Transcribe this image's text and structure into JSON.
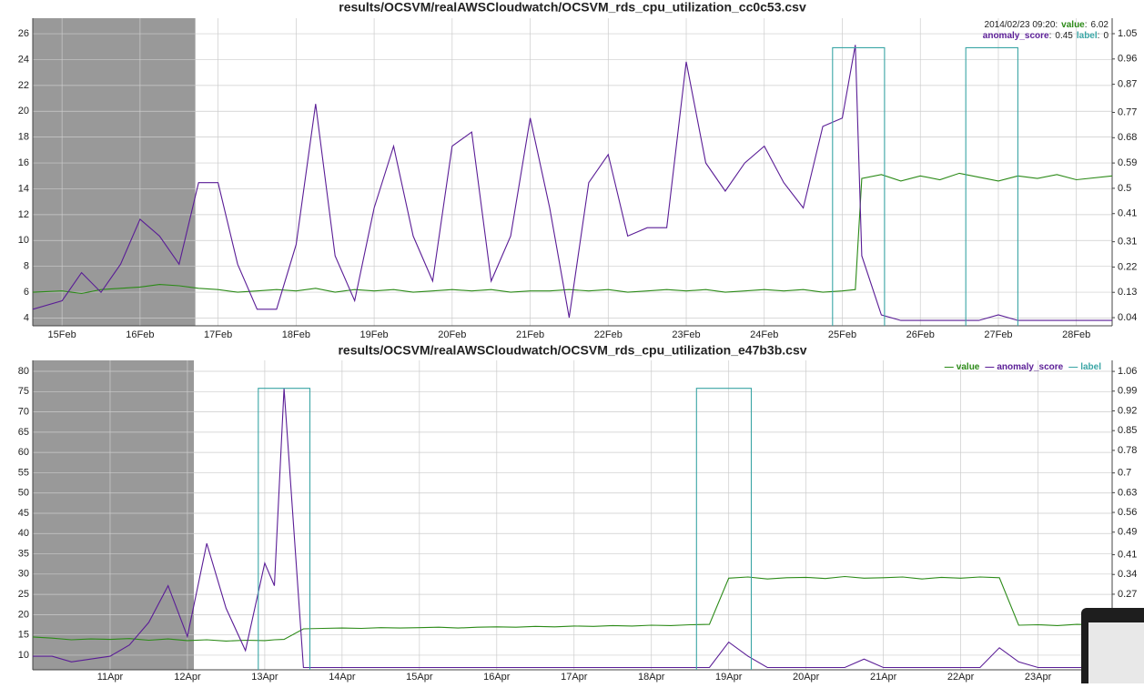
{
  "chart_data": [
    {
      "type": "line",
      "title": "results/OCSVM/realAWSCloudwatch/OCSVM_rds_cpu_utilization_cc0c53.csv",
      "x": [
        "02/14 15:00",
        "02/15 00:00",
        "02/15 06:00",
        "02/15 12:00",
        "02/15 18:00",
        "02/16 00:00",
        "02/16 06:00",
        "02/16 12:00",
        "02/16 18:00",
        "02/17 00:00",
        "02/17 06:00",
        "02/17 12:00",
        "02/17 18:00",
        "02/18 00:00",
        "02/18 06:00",
        "02/18 12:00",
        "02/18 18:00",
        "02/19 00:00",
        "02/19 06:00",
        "02/19 12:00",
        "02/19 18:00",
        "02/20 00:00",
        "02/20 06:00",
        "02/20 12:00",
        "02/20 18:00",
        "02/21 00:00",
        "02/21 06:00",
        "02/21 12:00",
        "02/21 18:00",
        "02/22 00:00",
        "02/22 06:00",
        "02/22 12:00",
        "02/22 18:00",
        "02/23 00:00",
        "02/23 06:00",
        "02/23 12:00",
        "02/23 18:00",
        "02/24 00:00",
        "02/24 06:00",
        "02/24 12:00",
        "02/24 18:00",
        "02/25 00:00",
        "02/25 04:00",
        "02/25 06:00",
        "02/25 12:00",
        "02/25 18:00",
        "02/26 00:00",
        "02/26 06:00",
        "02/26 12:00",
        "02/26 18:00",
        "02/27 00:00",
        "02/27 06:00",
        "02/27 12:00",
        "02/27 18:00",
        "02/28 00:00",
        "02/28 11:00"
      ],
      "series": [
        {
          "name": "value",
          "color": "#2b8a17",
          "values": [
            6.0,
            6.1,
            5.9,
            6.2,
            6.3,
            6.4,
            6.6,
            6.5,
            6.3,
            6.2,
            6.0,
            6.1,
            6.2,
            6.1,
            6.3,
            6.0,
            6.2,
            6.1,
            6.2,
            6.0,
            6.1,
            6.2,
            6.1,
            6.2,
            6.0,
            6.1,
            6.1,
            6.2,
            6.1,
            6.2,
            6.0,
            6.1,
            6.2,
            6.1,
            6.2,
            6.0,
            6.1,
            6.2,
            6.1,
            6.2,
            6.0,
            6.1,
            6.2,
            14.8,
            15.1,
            14.6,
            15.0,
            14.7,
            15.2,
            14.9,
            14.6,
            15.0,
            14.8,
            15.1,
            14.7,
            15.0
          ]
        },
        {
          "name": "anomaly_score",
          "color": "#5a1d96",
          "axis": "y2",
          "values": [
            0.07,
            0.1,
            0.2,
            0.13,
            0.23,
            0.39,
            0.33,
            0.23,
            0.52,
            0.52,
            0.23,
            0.07,
            0.07,
            0.3,
            0.8,
            0.26,
            0.1,
            0.43,
            0.65,
            0.33,
            0.17,
            0.65,
            0.7,
            0.17,
            0.33,
            0.75,
            0.43,
            0.04,
            0.52,
            0.62,
            0.33,
            0.36,
            0.36,
            0.95,
            0.59,
            0.49,
            0.59,
            0.65,
            0.52,
            0.43,
            0.72,
            0.75,
            1.01,
            0.26,
            0.05,
            0.03,
            0.03,
            0.03,
            0.03,
            0.03,
            0.05,
            0.03,
            0.03,
            0.03,
            0.03,
            0.03
          ]
        },
        {
          "name": "label",
          "color": "#3aa5a5",
          "axis": "y2",
          "x": [
            "02/14 15:00",
            "02/24 21:00",
            "02/24 21:00",
            "02/25 13:00",
            "02/25 13:00",
            "02/26 14:00",
            "02/26 14:00",
            "02/27 06:00",
            "02/27 06:00",
            "02/28 11:00"
          ],
          "values": [
            0,
            0,
            1,
            1,
            0,
            0,
            1,
            1,
            0,
            0
          ]
        }
      ],
      "xlim": [
        "02/14 15:00",
        "02/28 11:00"
      ],
      "xticks": [
        {
          "value": "02/15 00:00",
          "label": "15Feb"
        },
        {
          "value": "02/16 00:00",
          "label": "16Feb"
        },
        {
          "value": "02/17 00:00",
          "label": "17Feb"
        },
        {
          "value": "02/18 00:00",
          "label": "18Feb"
        },
        {
          "value": "02/19 00:00",
          "label": "19Feb"
        },
        {
          "value": "02/20 00:00",
          "label": "20Feb"
        },
        {
          "value": "02/21 00:00",
          "label": "21Feb"
        },
        {
          "value": "02/22 00:00",
          "label": "22Feb"
        },
        {
          "value": "02/23 00:00",
          "label": "23Feb"
        },
        {
          "value": "02/24 00:00",
          "label": "24Feb"
        },
        {
          "value": "02/25 00:00",
          "label": "25Feb"
        },
        {
          "value": "02/26 00:00",
          "label": "26Feb"
        },
        {
          "value": "02/27 00:00",
          "label": "27Feb"
        },
        {
          "value": "02/28 00:00",
          "label": "28Feb"
        }
      ],
      "ylim": [
        3.4,
        27.2
      ],
      "yticks": [
        4,
        6,
        8,
        10,
        12,
        14,
        16,
        18,
        20,
        22,
        24,
        26
      ],
      "y2lim": [
        0.011,
        1.105
      ],
      "y2ticks": [
        0.04,
        0.13,
        0.22,
        0.31,
        0.41,
        0.5,
        0.59,
        0.68,
        0.77,
        0.87,
        0.96,
        1.05
      ],
      "grid": true,
      "shaded_region": [
        "02/14 15:00",
        "02/16 17:00"
      ],
      "hover": {
        "time": "2014/02/23 09:20",
        "values": [
          6.02,
          0.45,
          0
        ]
      }
    },
    {
      "type": "line",
      "title": "results/OCSVM/realAWSCloudwatch/OCSVM_rds_cpu_utilization_e47b3b.csv",
      "x": [
        "04/10 00:00",
        "04/10 06:00",
        "04/10 12:00",
        "04/10 18:00",
        "04/11 00:00",
        "04/11 06:00",
        "04/11 12:00",
        "04/11 18:00",
        "04/12 00:00",
        "04/12 06:00",
        "04/12 12:00",
        "04/12 18:00",
        "04/13 00:00",
        "04/13 03:00",
        "04/13 06:00",
        "04/13 12:00",
        "04/13 18:00",
        "04/14 00:00",
        "04/14 06:00",
        "04/14 12:00",
        "04/14 18:00",
        "04/15 00:00",
        "04/15 06:00",
        "04/15 12:00",
        "04/15 18:00",
        "04/16 00:00",
        "04/16 06:00",
        "04/16 12:00",
        "04/16 18:00",
        "04/17 00:00",
        "04/17 06:00",
        "04/17 12:00",
        "04/17 18:00",
        "04/18 00:00",
        "04/18 06:00",
        "04/18 12:00",
        "04/18 18:00",
        "04/19 00:00",
        "04/19 06:00",
        "04/19 12:00",
        "04/19 18:00",
        "04/20 00:00",
        "04/20 06:00",
        "04/20 12:00",
        "04/20 18:00",
        "04/21 00:00",
        "04/21 06:00",
        "04/21 12:00",
        "04/21 18:00",
        "04/22 00:00",
        "04/22 06:00",
        "04/22 12:00",
        "04/22 18:00",
        "04/23 00:00",
        "04/23 06:00",
        "04/23 12:00",
        "04/23 23:00"
      ],
      "series": [
        {
          "name": "value",
          "color": "#2b8a17",
          "values": [
            14.5,
            14.2,
            13.8,
            14.0,
            13.9,
            14.1,
            13.7,
            14.0,
            13.6,
            13.8,
            13.5,
            13.7,
            13.6,
            13.8,
            13.9,
            16.5,
            16.6,
            16.7,
            16.6,
            16.8,
            16.7,
            16.8,
            16.9,
            16.7,
            16.9,
            17.0,
            16.9,
            17.1,
            17.0,
            17.2,
            17.1,
            17.3,
            17.2,
            17.4,
            17.3,
            17.5,
            17.6,
            29.0,
            29.3,
            28.8,
            29.1,
            29.2,
            28.9,
            29.4,
            29.0,
            29.1,
            29.3,
            28.8,
            29.2,
            29.0,
            29.3,
            29.1,
            17.4,
            17.5,
            17.3,
            17.6,
            17.4
          ]
        },
        {
          "name": "anomaly_score",
          "color": "#5a1d96",
          "axis": "y2",
          "values": [
            0.05,
            0.05,
            0.03,
            0.04,
            0.05,
            0.09,
            0.17,
            0.3,
            0.12,
            0.45,
            0.22,
            0.07,
            0.38,
            0.3,
            1.0,
            0.01,
            0.01,
            0.01,
            0.01,
            0.01,
            0.01,
            0.01,
            0.01,
            0.01,
            0.01,
            0.01,
            0.01,
            0.01,
            0.01,
            0.01,
            0.01,
            0.01,
            0.01,
            0.01,
            0.01,
            0.01,
            0.01,
            0.1,
            0.05,
            0.01,
            0.01,
            0.01,
            0.01,
            0.01,
            0.04,
            0.01,
            0.01,
            0.01,
            0.01,
            0.01,
            0.01,
            0.08,
            0.03,
            0.01,
            0.01,
            0.01,
            0.01
          ]
        },
        {
          "name": "label",
          "color": "#3aa5a5",
          "axis": "y2",
          "x": [
            "04/10 00:00",
            "04/12 22:00",
            "04/12 22:00",
            "04/13 14:00",
            "04/13 14:00",
            "04/18 14:00",
            "04/18 14:00",
            "04/19 07:00",
            "04/19 07:00",
            "04/23 23:00"
          ],
          "values": [
            0,
            0,
            1,
            1,
            0,
            0,
            1,
            1,
            0,
            0
          ]
        }
      ],
      "xlim": [
        "04/10 00:00",
        "04/23 23:00"
      ],
      "xticks": [
        {
          "value": "04/11 00:00",
          "label": "11Apr"
        },
        {
          "value": "04/12 00:00",
          "label": "12Apr"
        },
        {
          "value": "04/13 00:00",
          "label": "13Apr"
        },
        {
          "value": "04/14 00:00",
          "label": "14Apr"
        },
        {
          "value": "04/15 00:00",
          "label": "15Apr"
        },
        {
          "value": "04/16 00:00",
          "label": "16Apr"
        },
        {
          "value": "04/17 00:00",
          "label": "17Apr"
        },
        {
          "value": "04/18 00:00",
          "label": "18Apr"
        },
        {
          "value": "04/19 00:00",
          "label": "19Apr"
        },
        {
          "value": "04/20 00:00",
          "label": "20Apr"
        },
        {
          "value": "04/21 00:00",
          "label": "21Apr"
        },
        {
          "value": "04/22 00:00",
          "label": "22Apr"
        },
        {
          "value": "04/23 00:00",
          "label": "23Apr"
        }
      ],
      "ylim": [
        6.4,
        82.7
      ],
      "yticks": [
        10,
        15,
        20,
        25,
        30,
        35,
        40,
        45,
        50,
        55,
        60,
        65,
        70,
        75,
        80
      ],
      "y2lim": [
        0.002,
        1.099
      ],
      "y2ticks": [
        0.27,
        0.34,
        0.41,
        0.49,
        0.56,
        0.63,
        0.7,
        0.78,
        0.85,
        0.92,
        0.99,
        1.06
      ],
      "grid": true,
      "shaded_region": [
        "04/10 00:00",
        "04/12 02:00"
      ],
      "legend": "top-right"
    }
  ]
}
